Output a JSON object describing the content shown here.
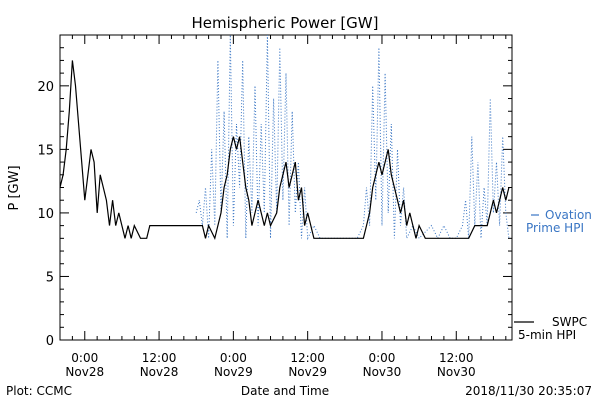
{
  "chart_data": {
    "type": "line",
    "title": "Hemispheric Power [GW]",
    "xlabel": "Date and Time",
    "ylabel": "P [GW]",
    "xlim": [
      "2018-11-27T20:00",
      "2018-11-30T21:00"
    ],
    "ylim": [
      0,
      24
    ],
    "yticks": [
      0,
      5,
      10,
      15,
      20
    ],
    "xticks": [
      {
        "t": "2018-11-28T00:00",
        "line1": "0:00",
        "line2": "Nov28"
      },
      {
        "t": "2018-11-28T12:00",
        "line1": "12:00",
        "line2": "Nov28"
      },
      {
        "t": "2018-11-29T00:00",
        "line1": "0:00",
        "line2": "Nov29"
      },
      {
        "t": "2018-11-29T12:00",
        "line1": "12:00",
        "line2": "Nov29"
      },
      {
        "t": "2018-11-30T00:00",
        "line1": "0:00",
        "line2": "Nov30"
      },
      {
        "t": "2018-11-30T12:00",
        "line1": "12:00",
        "line2": "Nov30"
      }
    ],
    "legend_placement": "right",
    "series": [
      {
        "name": "SWPC 5-min HPI",
        "legend_line1": "SWPC",
        "legend_line2": "5-min HPI",
        "color": "#000000",
        "style": "solid",
        "points": [
          [
            "2018-11-27T20:00",
            12
          ],
          [
            "2018-11-27T20:30",
            13
          ],
          [
            "2018-11-27T21:00",
            15
          ],
          [
            "2018-11-27T21:30",
            18
          ],
          [
            "2018-11-27T22:00",
            22
          ],
          [
            "2018-11-27T22:30",
            20
          ],
          [
            "2018-11-27T23:00",
            17
          ],
          [
            "2018-11-27T23:30",
            14
          ],
          [
            "2018-11-28T00:00",
            11
          ],
          [
            "2018-11-28T00:30",
            13
          ],
          [
            "2018-11-28T01:00",
            15
          ],
          [
            "2018-11-28T01:30",
            14
          ],
          [
            "2018-11-28T02:00",
            10
          ],
          [
            "2018-11-28T02:30",
            13
          ],
          [
            "2018-11-28T03:00",
            12
          ],
          [
            "2018-11-28T03:30",
            11
          ],
          [
            "2018-11-28T04:00",
            9
          ],
          [
            "2018-11-28T04:30",
            11
          ],
          [
            "2018-11-28T05:00",
            9
          ],
          [
            "2018-11-28T05:30",
            10
          ],
          [
            "2018-11-28T06:00",
            9
          ],
          [
            "2018-11-28T06:30",
            8
          ],
          [
            "2018-11-28T07:00",
            9
          ],
          [
            "2018-11-28T07:30",
            8
          ],
          [
            "2018-11-28T08:00",
            9
          ],
          [
            "2018-11-28T09:00",
            8
          ],
          [
            "2018-11-28T10:00",
            8
          ],
          [
            "2018-11-28T10:30",
            9
          ],
          [
            "2018-11-28T12:00",
            9
          ],
          [
            "2018-11-28T14:00",
            9
          ],
          [
            "2018-11-28T16:00",
            9
          ],
          [
            "2018-11-28T18:00",
            9
          ],
          [
            "2018-11-28T19:00",
            9
          ],
          [
            "2018-11-28T19:30",
            8
          ],
          [
            "2018-11-28T20:00",
            9
          ],
          [
            "2018-11-28T21:00",
            8
          ],
          [
            "2018-11-28T22:00",
            10
          ],
          [
            "2018-11-28T22:30",
            12
          ],
          [
            "2018-11-28T23:00",
            13
          ],
          [
            "2018-11-28T23:30",
            15
          ],
          [
            "2018-11-29T00:00",
            16
          ],
          [
            "2018-11-29T00:30",
            15
          ],
          [
            "2018-11-29T01:00",
            16
          ],
          [
            "2018-11-29T01:30",
            14
          ],
          [
            "2018-11-29T02:00",
            12
          ],
          [
            "2018-11-29T02:30",
            11
          ],
          [
            "2018-11-29T03:00",
            9
          ],
          [
            "2018-11-29T03:30",
            10
          ],
          [
            "2018-11-29T04:00",
            11
          ],
          [
            "2018-11-29T04:30",
            10
          ],
          [
            "2018-11-29T05:00",
            9
          ],
          [
            "2018-11-29T05:30",
            10
          ],
          [
            "2018-11-29T06:00",
            9
          ],
          [
            "2018-11-29T07:00",
            10
          ],
          [
            "2018-11-29T07:30",
            12
          ],
          [
            "2018-11-29T08:00",
            13
          ],
          [
            "2018-11-29T08:30",
            14
          ],
          [
            "2018-11-29T09:00",
            12
          ],
          [
            "2018-11-29T09:30",
            13
          ],
          [
            "2018-11-29T10:00",
            14
          ],
          [
            "2018-11-29T10:30",
            11
          ],
          [
            "2018-11-29T11:00",
            12
          ],
          [
            "2018-11-29T11:30",
            9
          ],
          [
            "2018-11-29T12:00",
            10
          ],
          [
            "2018-11-29T13:00",
            8
          ],
          [
            "2018-11-29T16:00",
            8
          ],
          [
            "2018-11-29T19:00",
            8
          ],
          [
            "2018-11-29T21:00",
            8
          ],
          [
            "2018-11-29T21:30",
            9
          ],
          [
            "2018-11-29T22:00",
            10
          ],
          [
            "2018-11-29T22:30",
            12
          ],
          [
            "2018-11-29T23:00",
            13
          ],
          [
            "2018-11-29T23:30",
            14
          ],
          [
            "2018-11-30T00:00",
            13
          ],
          [
            "2018-11-30T00:30",
            14
          ],
          [
            "2018-11-30T01:00",
            15
          ],
          [
            "2018-11-30T01:30",
            13
          ],
          [
            "2018-11-30T02:00",
            12
          ],
          [
            "2018-11-30T02:30",
            11
          ],
          [
            "2018-11-30T03:00",
            10
          ],
          [
            "2018-11-30T03:30",
            11
          ],
          [
            "2018-11-30T04:00",
            9
          ],
          [
            "2018-11-30T04:30",
            10
          ],
          [
            "2018-11-30T05:00",
            9
          ],
          [
            "2018-11-30T05:30",
            8
          ],
          [
            "2018-11-30T06:00",
            9
          ],
          [
            "2018-11-30T07:00",
            8
          ],
          [
            "2018-11-30T10:00",
            8
          ],
          [
            "2018-11-30T12:00",
            8
          ],
          [
            "2018-11-30T14:00",
            8
          ],
          [
            "2018-11-30T15:00",
            9
          ],
          [
            "2018-11-30T17:00",
            9
          ],
          [
            "2018-11-30T17:30",
            10
          ],
          [
            "2018-11-30T18:00",
            11
          ],
          [
            "2018-11-30T18:30",
            10
          ],
          [
            "2018-11-30T19:00",
            11
          ],
          [
            "2018-11-30T19:30",
            12
          ],
          [
            "2018-11-30T20:00",
            11
          ],
          [
            "2018-11-30T20:30",
            12
          ]
        ]
      },
      {
        "name": "Ovation Prime HPI",
        "legend_line1": "Ovation",
        "legend_line2": "Prime HPI",
        "color": "#3a76c4",
        "style": "dotted",
        "points": [
          [
            "2018-11-28T18:00",
            10
          ],
          [
            "2018-11-28T18:30",
            11
          ],
          [
            "2018-11-28T19:00",
            9
          ],
          [
            "2018-11-28T19:30",
            12
          ],
          [
            "2018-11-28T20:00",
            8
          ],
          [
            "2018-11-28T20:30",
            15
          ],
          [
            "2018-11-28T21:00",
            9
          ],
          [
            "2018-11-28T21:30",
            22
          ],
          [
            "2018-11-28T22:00",
            10
          ],
          [
            "2018-11-28T22:30",
            18
          ],
          [
            "2018-11-28T23:00",
            8
          ],
          [
            "2018-11-28T23:30",
            24
          ],
          [
            "2018-11-29T00:00",
            9
          ],
          [
            "2018-11-29T00:30",
            17
          ],
          [
            "2018-11-29T01:00",
            12
          ],
          [
            "2018-11-29T01:30",
            22
          ],
          [
            "2018-11-29T02:00",
            8
          ],
          [
            "2018-11-29T02:30",
            16
          ],
          [
            "2018-11-29T03:00",
            10
          ],
          [
            "2018-11-29T03:30",
            20
          ],
          [
            "2018-11-29T04:00",
            9
          ],
          [
            "2018-11-29T04:30",
            17
          ],
          [
            "2018-11-29T05:00",
            10
          ],
          [
            "2018-11-29T05:30",
            24
          ],
          [
            "2018-11-29T06:00",
            8
          ],
          [
            "2018-11-29T06:30",
            19
          ],
          [
            "2018-11-29T07:00",
            10
          ],
          [
            "2018-11-29T07:30",
            23
          ],
          [
            "2018-11-29T08:00",
            11
          ],
          [
            "2018-11-29T08:30",
            21
          ],
          [
            "2018-11-29T09:00",
            9
          ],
          [
            "2018-11-29T09:30",
            18
          ],
          [
            "2018-11-29T10:00",
            10
          ],
          [
            "2018-11-29T10:30",
            14
          ],
          [
            "2018-11-29T11:00",
            8
          ],
          [
            "2018-11-29T11:30",
            12
          ],
          [
            "2018-11-29T12:00",
            8
          ],
          [
            "2018-11-29T13:00",
            9
          ],
          [
            "2018-11-29T14:00",
            8
          ],
          [
            "2018-11-29T15:00",
            8
          ],
          [
            "2018-11-29T18:00",
            8
          ],
          [
            "2018-11-29T20:00",
            8
          ],
          [
            "2018-11-29T21:00",
            9
          ],
          [
            "2018-11-29T21:30",
            12
          ],
          [
            "2018-11-29T22:00",
            9
          ],
          [
            "2018-11-29T22:30",
            20
          ],
          [
            "2018-11-29T23:00",
            11
          ],
          [
            "2018-11-29T23:30",
            23
          ],
          [
            "2018-11-30T00:00",
            9
          ],
          [
            "2018-11-30T00:30",
            21
          ],
          [
            "2018-11-30T01:00",
            10
          ],
          [
            "2018-11-30T01:30",
            17
          ],
          [
            "2018-11-30T02:00",
            8
          ],
          [
            "2018-11-30T02:30",
            15
          ],
          [
            "2018-11-30T03:00",
            9
          ],
          [
            "2018-11-30T03:30",
            12
          ],
          [
            "2018-11-30T04:00",
            8
          ],
          [
            "2018-11-30T05:00",
            9
          ],
          [
            "2018-11-30T06:00",
            8
          ],
          [
            "2018-11-30T08:00",
            9
          ],
          [
            "2018-11-30T09:00",
            8
          ],
          [
            "2018-11-30T10:00",
            9
          ],
          [
            "2018-11-30T11:00",
            8
          ],
          [
            "2018-11-30T12:00",
            8
          ],
          [
            "2018-11-30T13:00",
            9
          ],
          [
            "2018-11-30T13:30",
            11
          ],
          [
            "2018-11-30T14:00",
            8
          ],
          [
            "2018-11-30T14:30",
            16
          ],
          [
            "2018-11-30T15:00",
            9
          ],
          [
            "2018-11-30T15:30",
            14
          ],
          [
            "2018-11-30T16:00",
            8
          ],
          [
            "2018-11-30T16:30",
            12
          ],
          [
            "2018-11-30T17:00",
            9
          ],
          [
            "2018-11-30T17:30",
            19
          ],
          [
            "2018-11-30T18:00",
            10
          ],
          [
            "2018-11-30T18:30",
            14
          ],
          [
            "2018-11-30T19:00",
            9
          ],
          [
            "2018-11-30T19:30",
            16
          ],
          [
            "2018-11-30T20:00",
            10
          ],
          [
            "2018-11-30T20:30",
            8
          ]
        ]
      }
    ]
  },
  "footer": {
    "left": "Plot: CCMC",
    "right": "2018/11/30 20:35:07"
  }
}
